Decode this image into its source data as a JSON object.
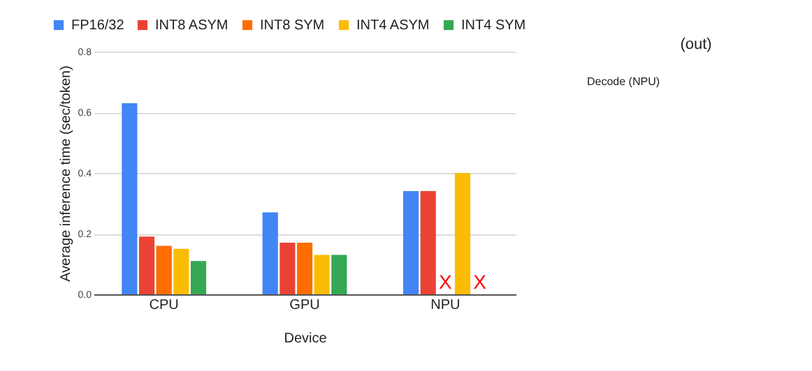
{
  "chart_data": {
    "type": "bar",
    "xlabel": "Device",
    "ylabel": "Average inference time (sec/token)",
    "categories": [
      "CPU",
      "GPU",
      "NPU"
    ],
    "series": [
      {
        "name": "FP16/32",
        "color": "#4285f4",
        "values": [
          0.63,
          0.27,
          0.34
        ]
      },
      {
        "name": "INT8 ASYM",
        "color": "#ea4335",
        "values": [
          0.19,
          0.17,
          0.34
        ]
      },
      {
        "name": "INT8 SYM",
        "color": "#ff6d01",
        "values": [
          0.16,
          0.17,
          null
        ]
      },
      {
        "name": "INT4 ASYM",
        "color": "#fbbc04",
        "values": [
          0.15,
          0.13,
          0.4
        ]
      },
      {
        "name": "INT4 SYM",
        "color": "#34a853",
        "values": [
          0.11,
          0.13,
          null
        ]
      }
    ],
    "ylim": [
      0,
      0.8
    ],
    "yticks": [
      {
        "value": 0,
        "label": "0.0"
      },
      0.2,
      0.4,
      0.6,
      0.8
    ],
    "grid": "y",
    "legend": "top",
    "annotations": [
      "X",
      "X",
      "Decode (NPU)",
      "(out)"
    ]
  }
}
